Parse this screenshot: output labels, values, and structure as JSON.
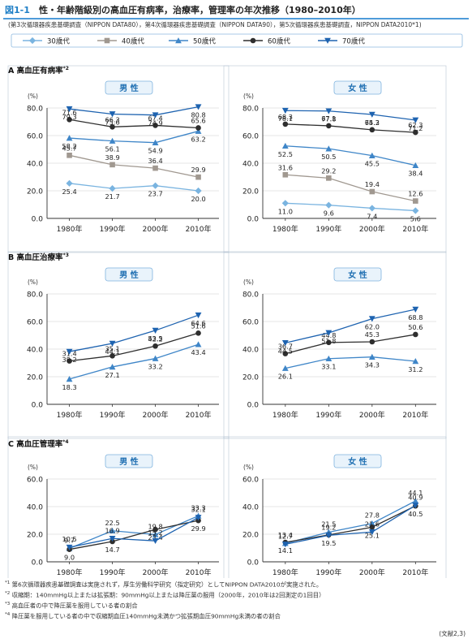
{
  "header": {
    "fig_no": "図1-1",
    "title": "性・年齢階級別の高血圧有病率，治療率，管理率の年次推移（1980–2010年）",
    "source": "(第3次循環器疾患基礎調査（NIPPON DATA80），第4次循環器疾患基礎調査（NIPPON DATA90），第5次循環器疾患基礎調査，NIPPON DATA2010*1)"
  },
  "legend": [
    {
      "name": "30歳代",
      "color": "#7ab4e0",
      "marker": "diamond"
    },
    {
      "name": "40歳代",
      "color": "#a09890",
      "marker": "square"
    },
    {
      "name": "50歳代",
      "color": "#3f86c8",
      "marker": "triangle-up"
    },
    {
      "name": "60歳代",
      "color": "#2e2e2e",
      "marker": "circle"
    },
    {
      "name": "70歳代",
      "color": "#1e63b0",
      "marker": "triangle-down"
    }
  ],
  "sections": [
    {
      "id": "A",
      "label": "A 高血圧有病率",
      "note": "*2"
    },
    {
      "id": "B",
      "label": "B 高血圧治療率",
      "note": "*3"
    },
    {
      "id": "C",
      "label": "C 高血圧管理率",
      "note": "*4"
    }
  ],
  "common": {
    "ylabel": "(%)",
    "sex_male": "男 性",
    "sex_female": "女 性",
    "x": [
      "1980年",
      "1990年",
      "2000年",
      "2010年"
    ]
  },
  "chart_data": [
    {
      "id": "A-male",
      "type": "line",
      "section": "A",
      "sex": "男 性",
      "categories": [
        "1980年",
        "1990年",
        "2000年",
        "2010年"
      ],
      "ylim": [
        0,
        80
      ],
      "yticks": [
        "0.0",
        "20.0",
        "40.0",
        "60.0",
        "80.0"
      ],
      "series": [
        {
          "name": "30歳代",
          "values": [
            25.4,
            21.7,
            23.7,
            20.0
          ]
        },
        {
          "name": "40歳代",
          "values": [
            45.7,
            38.9,
            36.4,
            29.9
          ]
        },
        {
          "name": "50歳代",
          "values": [
            58.2,
            56.1,
            54.9,
            63.2
          ]
        },
        {
          "name": "60歳代",
          "values": [
            71.6,
            66.3,
            67.4,
            65.6
          ]
        },
        {
          "name": "70歳代",
          "values": [
            79.3,
            75.6,
            74.9,
            80.8
          ]
        }
      ]
    },
    {
      "id": "A-female",
      "type": "line",
      "section": "A",
      "sex": "女 性",
      "categories": [
        "1980年",
        "1990年",
        "2000年",
        "2010年"
      ],
      "ylim": [
        0,
        80
      ],
      "yticks": [
        "0.0",
        "20.0",
        "40.0",
        "60.0",
        "80.0"
      ],
      "series": [
        {
          "name": "30歳代",
          "values": [
            11.0,
            9.6,
            7.4,
            5.6
          ]
        },
        {
          "name": "40歳代",
          "values": [
            31.6,
            29.2,
            19.4,
            12.6
          ]
        },
        {
          "name": "50歳代",
          "values": [
            52.5,
            50.5,
            45.5,
            38.4
          ]
        },
        {
          "name": "60歳代",
          "values": [
            68.3,
            67.1,
            64.2,
            62.3
          ]
        },
        {
          "name": "70歳代",
          "values": [
            78.1,
            77.8,
            75.3,
            71.2
          ]
        }
      ]
    },
    {
      "id": "B-male",
      "type": "line",
      "section": "B",
      "sex": "男 性",
      "categories": [
        "1980年",
        "1990年",
        "2000年",
        "2010年"
      ],
      "ylim": [
        0,
        80
      ],
      "yticks": [
        "0.0",
        "20.0",
        "40.0",
        "60.0",
        "80.0"
      ],
      "series": [
        {
          "name": "50歳代",
          "values": [
            18.3,
            27.1,
            33.2,
            43.4
          ]
        },
        {
          "name": "60歳代",
          "values": [
            31.4,
            35.1,
            42.2,
            51.6
          ]
        },
        {
          "name": "70歳代",
          "values": [
            38.2,
            44.1,
            53.5,
            64.6
          ]
        }
      ]
    },
    {
      "id": "B-female",
      "type": "line",
      "section": "B",
      "sex": "女 性",
      "categories": [
        "1980年",
        "1990年",
        "2000年",
        "2010年"
      ],
      "ylim": [
        0,
        80
      ],
      "yticks": [
        "0.0",
        "20.0",
        "40.0",
        "60.0",
        "80.0"
      ],
      "series": [
        {
          "name": "50歳代",
          "values": [
            26.1,
            33.1,
            34.3,
            31.2
          ]
        },
        {
          "name": "60歳代",
          "values": [
            36.7,
            44.8,
            45.3,
            50.6
          ]
        },
        {
          "name": "70歳代",
          "values": [
            44.5,
            51.8,
            62.0,
            68.8
          ]
        }
      ]
    },
    {
      "id": "C-male",
      "type": "line",
      "section": "C",
      "sex": "男 性",
      "categories": [
        "1980年",
        "1990年",
        "2000年",
        "2010年"
      ],
      "ylim": [
        0,
        60
      ],
      "yticks": [
        "0.0",
        "20.0",
        "40.0",
        "60.0"
      ],
      "series": [
        {
          "name": "50歳代",
          "values": [
            9.7,
            22.5,
            19.8,
            33.3
          ]
        },
        {
          "name": "60歳代",
          "values": [
            9.0,
            14.7,
            23.4,
            29.9
          ]
        },
        {
          "name": "70歳代",
          "values": [
            10.5,
            16.9,
            15.2,
            32.1
          ]
        }
      ]
    },
    {
      "id": "C-female",
      "type": "line",
      "section": "C",
      "sex": "女 性",
      "categories": [
        "1980年",
        "1990年",
        "2000年",
        "2010年"
      ],
      "ylim": [
        0,
        60
      ],
      "yticks": [
        "0.0",
        "20.0",
        "40.0",
        "60.0"
      ],
      "series": [
        {
          "name": "50歳代",
          "values": [
            13.4,
            21.5,
            27.8,
            44.1
          ]
        },
        {
          "name": "60歳代",
          "values": [
            14.1,
            19.5,
            25.1,
            40.5
          ]
        },
        {
          "name": "70歳代",
          "values": [
            12.7,
            19.2,
            21.6,
            40.9
          ]
        }
      ]
    }
  ],
  "footnotes": [
    {
      "mark": "*1",
      "text": "第6次循環器疾患基礎調査は実施されず，厚生労働科学研究（指定研究）としてNIPPON DATA2010が実施された。"
    },
    {
      "mark": "*2",
      "text": "収縮期：140mmHg以上または拡張期：90mmHg以上または降圧薬の服用（2000年，2010年は2回測定の1回目）"
    },
    {
      "mark": "*3",
      "text": "高血圧者の中で降圧薬を服用している者の割合"
    },
    {
      "mark": "*4",
      "text": "降圧薬を服用している者の中で収縮期血圧140mmHg未満かつ拡張期血圧90mmHg未満の者の割合"
    }
  ],
  "reference": "(文献2,3)"
}
